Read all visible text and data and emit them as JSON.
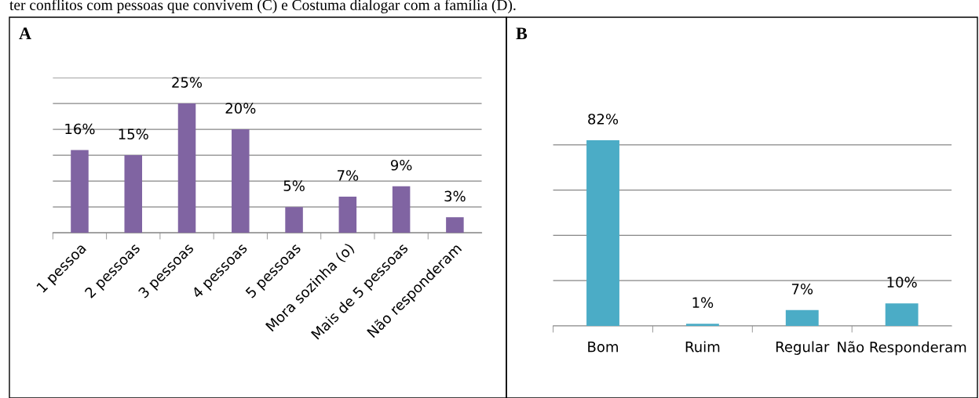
{
  "chart_data": [
    {
      "type": "bar",
      "title": "A",
      "categories": [
        "1 pessoa",
        "2 pessoas",
        "3 pessoas",
        "4 pessoas",
        "5 pessoas",
        "Mora sozinha (o)",
        "Mais de 5 pessoas",
        "Não responderam"
      ],
      "values": [
        16,
        15,
        25,
        20,
        5,
        7,
        9,
        3
      ],
      "color": "#8064a2",
      "value_labels": [
        "16%",
        "15%",
        "25%",
        "20%",
        "5%",
        "7%",
        "9%",
        "3%"
      ],
      "ylim": [
        0,
        30
      ],
      "yticks": [
        {
          "value": 0,
          "label": null
        },
        {
          "value": 5,
          "label": null
        },
        {
          "value": 10,
          "label": null
        },
        {
          "value": 15,
          "label": null
        },
        {
          "value": 20,
          "label": null
        },
        {
          "value": 25,
          "label": null
        },
        {
          "value": 30,
          "label": null
        }
      ],
      "grid": "y",
      "annotations": [
        "ter conflitos com pessoas que convivem (C) e Costuma dialogar com a família (D)."
      ]
    },
    {
      "type": "bar",
      "title": "B",
      "categories": [
        "Bom",
        "Ruim",
        "Regular",
        "Não Responderam"
      ],
      "values": [
        82,
        1,
        7,
        10
      ],
      "color": "#4bacc6",
      "value_labels": [
        "82%",
        "1%",
        "7%",
        "10%"
      ],
      "grid": "y"
    }
  ]
}
